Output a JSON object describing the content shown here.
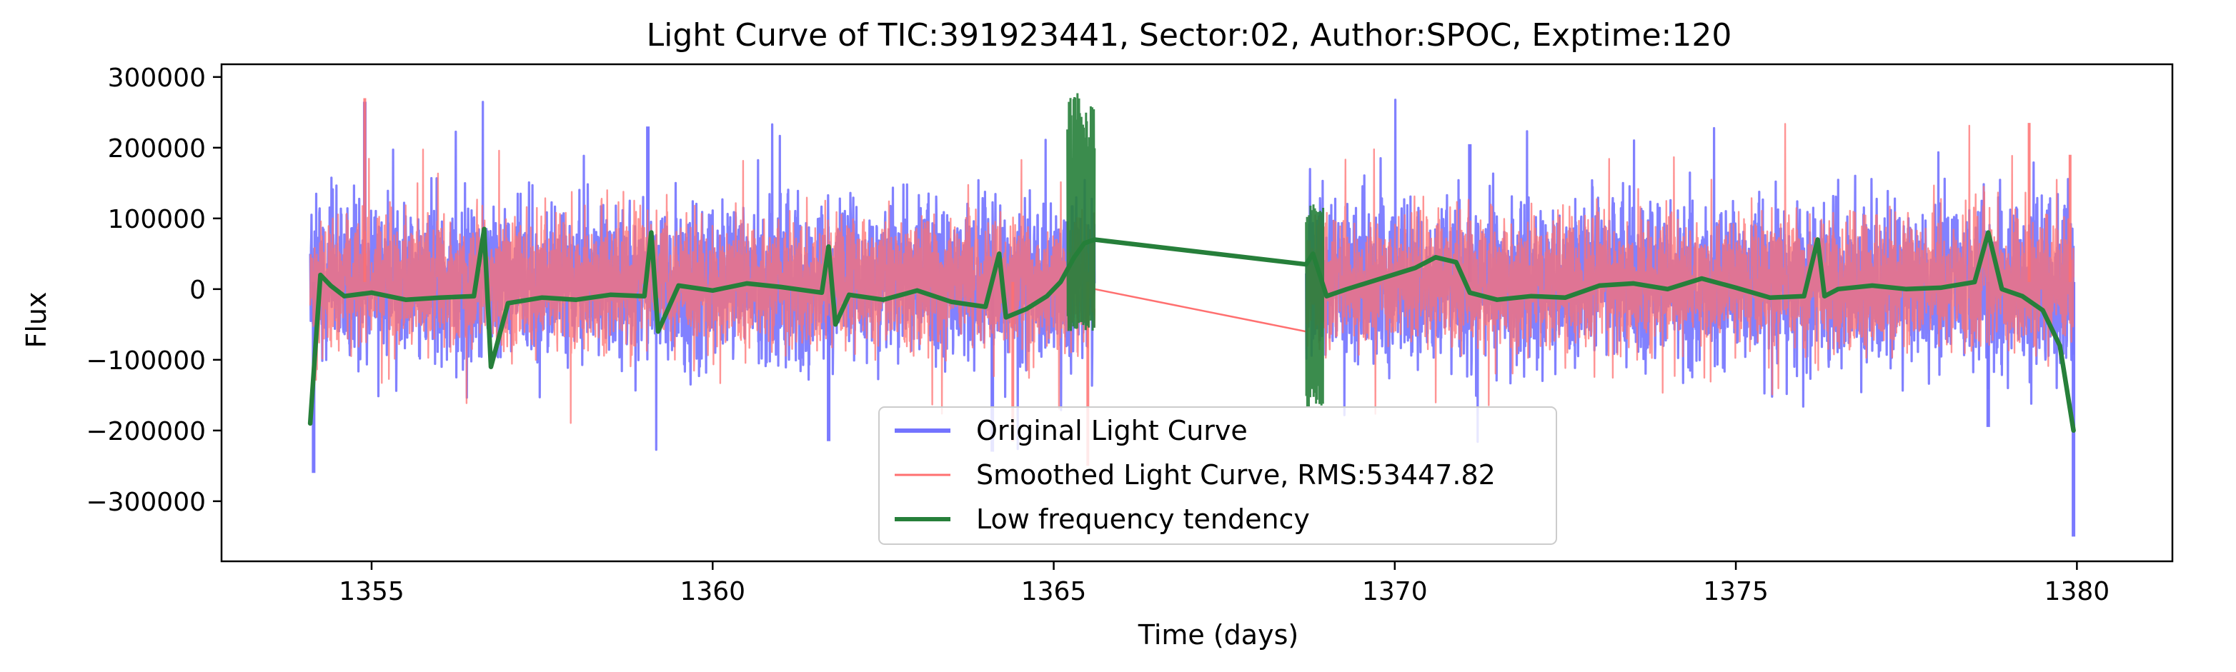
{
  "chart_data": {
    "type": "line",
    "title": "Light Curve of TIC:391923441, Sector:02, Author:SPOC, Exptime:120",
    "xlabel": "Time (days)",
    "ylabel": "Flux",
    "xlim": [
      1352.8,
      1381.4
    ],
    "ylim": [
      -385000,
      318000
    ],
    "xticks": [
      1355,
      1360,
      1365,
      1370,
      1375,
      1380
    ],
    "xtick_labels": [
      "1355",
      "1360",
      "1365",
      "1370",
      "1375",
      "1380"
    ],
    "yticks": [
      -300000,
      -200000,
      -100000,
      0,
      100000,
      200000,
      300000
    ],
    "ytick_labels": [
      "−300000",
      "−200000",
      "−100000",
      "0",
      "100000",
      "200000",
      "300000"
    ],
    "grid": false,
    "legend_position": "bottom-center",
    "segments": [
      [
        1354.1,
        1365.6
      ],
      [
        1368.7,
        1379.95
      ]
    ],
    "series": [
      {
        "name": "Original Light Curve",
        "color": "#7373ff",
        "style": "noise-band",
        "envelope_typical": [
          -110000,
          130000
        ],
        "extremes": [
          {
            "x": 1354.15,
            "y": -260000
          },
          {
            "x": 1354.9,
            "y": 265000
          },
          {
            "x": 1359.05,
            "y": 230000
          },
          {
            "x": 1361.7,
            "y": -215000
          },
          {
            "x": 1364.1,
            "y": -230000
          },
          {
            "x": 1371.1,
            "y": 205000
          },
          {
            "x": 1378.7,
            "y": -195000
          },
          {
            "x": 1379.95,
            "y": -350000
          }
        ]
      },
      {
        "name": "Smoothed Light Curve, RMS:53447.82",
        "color": "#ff7070",
        "style": "noise-band",
        "envelope_typical": [
          -95000,
          115000
        ],
        "gap_line": [
          [
            1365.6,
            0
          ],
          [
            1368.7,
            -60000
          ]
        ],
        "extremes": [
          {
            "x": 1354.9,
            "y": 270000
          },
          {
            "x": 1364.4,
            "y": -215000
          },
          {
            "x": 1365.5,
            "y": -250000
          },
          {
            "x": 1379.3,
            "y": 235000
          },
          {
            "x": 1379.9,
            "y": 190000
          }
        ]
      },
      {
        "name": "Low frequency tendency",
        "color": "#267f3a",
        "style": "trend",
        "x": [
          1354.1,
          1354.25,
          1354.4,
          1354.6,
          1355.0,
          1355.5,
          1356.0,
          1356.5,
          1356.65,
          1356.75,
          1357.0,
          1357.5,
          1358.0,
          1358.5,
          1359.0,
          1359.1,
          1359.2,
          1359.5,
          1360.0,
          1360.5,
          1361.0,
          1361.6,
          1361.7,
          1361.8,
          1362.0,
          1362.5,
          1363.0,
          1363.5,
          1364.0,
          1364.2,
          1364.3,
          1364.6,
          1364.9,
          1365.1,
          1365.3,
          1365.45,
          1365.6,
          1368.7,
          1368.8,
          1369.0,
          1369.3,
          1369.8,
          1370.3,
          1370.6,
          1370.9,
          1371.1,
          1371.5,
          1372.0,
          1372.5,
          1373.0,
          1373.5,
          1374.0,
          1374.5,
          1375.0,
          1375.5,
          1376.0,
          1376.2,
          1376.3,
          1376.5,
          1377.0,
          1377.5,
          1378.0,
          1378.5,
          1378.7,
          1378.9,
          1379.2,
          1379.5,
          1379.75,
          1379.95
        ],
        "y": [
          -190000,
          20000,
          5000,
          -10000,
          -5000,
          -15000,
          -12000,
          -10000,
          85000,
          -110000,
          -20000,
          -12000,
          -15000,
          -8000,
          -10000,
          80000,
          -60000,
          5000,
          -2000,
          8000,
          3000,
          -5000,
          60000,
          -50000,
          -8000,
          -15000,
          -2000,
          -18000,
          -25000,
          50000,
          -40000,
          -28000,
          -10000,
          10000,
          45000,
          65000,
          70000,
          35000,
          50000,
          -10000,
          0,
          15000,
          30000,
          45000,
          38000,
          -5000,
          -15000,
          -10000,
          -12000,
          5000,
          8000,
          0,
          15000,
          2000,
          -12000,
          -10000,
          70000,
          -10000,
          0,
          5000,
          0,
          2000,
          10000,
          80000,
          0,
          -10000,
          -30000,
          -80000,
          -200000
        ]
      }
    ]
  }
}
